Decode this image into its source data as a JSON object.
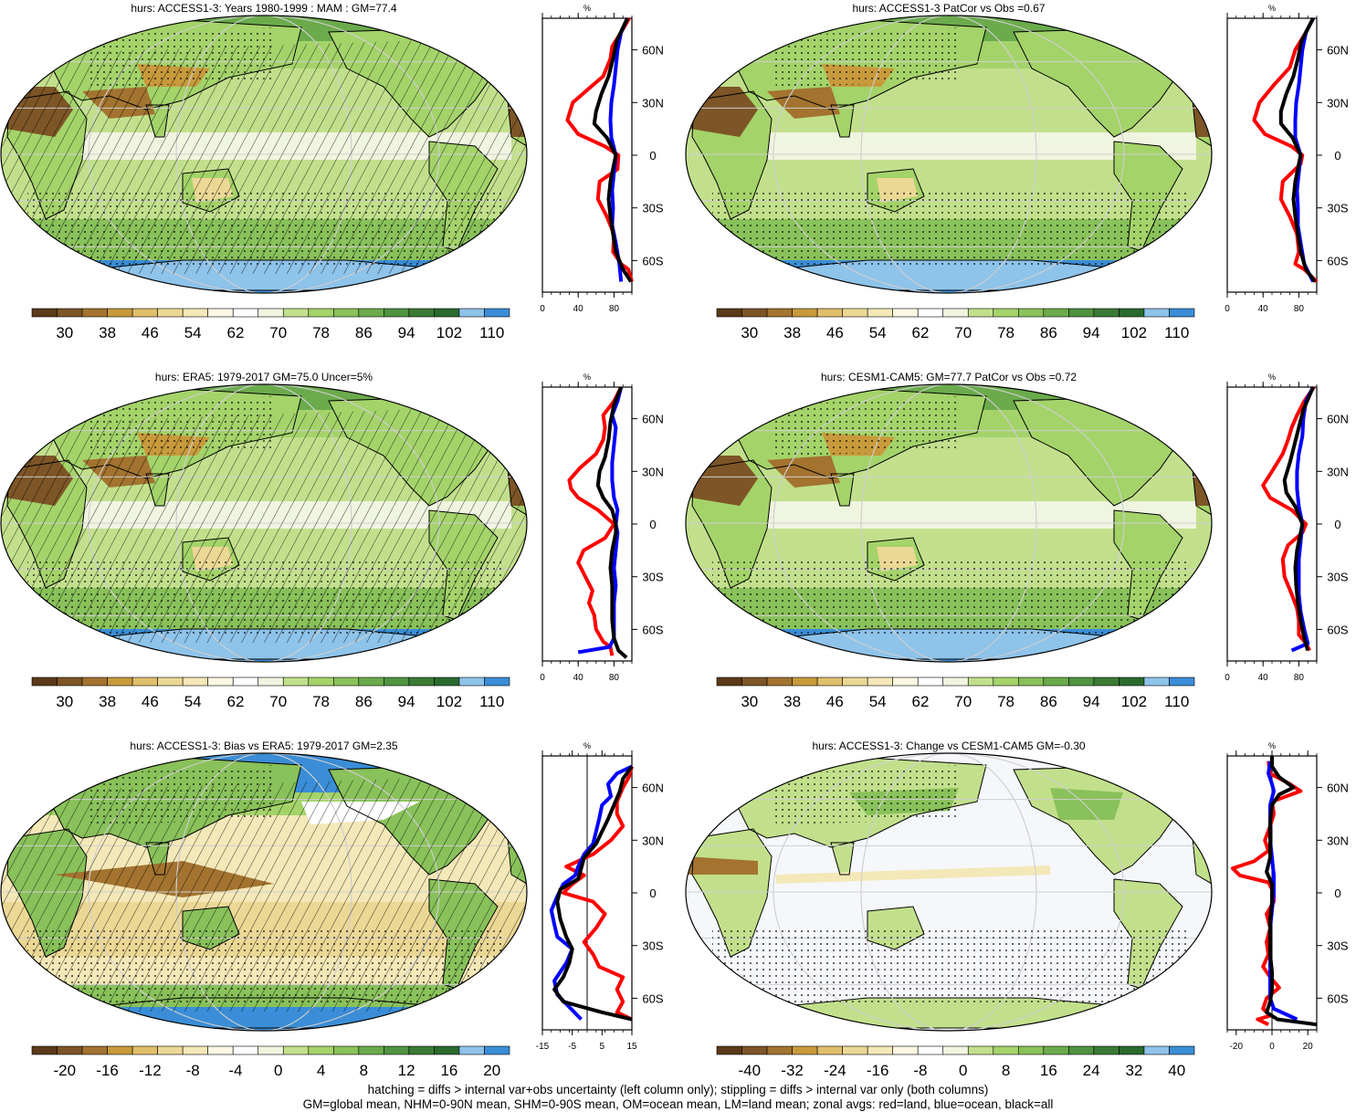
{
  "panels": [
    {
      "title": "hurs: ACCESS1-3: Years 1980-1999 : MAM : GM=77.4",
      "kind": "abs",
      "hatch": true,
      "stipple": true,
      "cb_labels": [
        "30",
        "38",
        "46",
        "54",
        "62",
        "70",
        "78",
        "86",
        "94",
        "102",
        "110"
      ],
      "zx_labels": [
        "0",
        "40",
        "80"
      ],
      "zx_range": [
        0,
        100
      ],
      "zx_ticks": [
        0,
        40,
        80
      ]
    },
    {
      "title": "hurs: ACCESS1-3 PatCor vs Obs =0.67",
      "kind": "abs",
      "hatch": false,
      "stipple": true,
      "cb_labels": [
        "30",
        "38",
        "46",
        "54",
        "62",
        "70",
        "78",
        "86",
        "94",
        "102",
        "110"
      ],
      "zx_labels": [
        "0",
        "40",
        "80"
      ],
      "zx_range": [
        0,
        100
      ],
      "zx_ticks": [
        0,
        40,
        80
      ]
    },
    {
      "title": "hurs: ERA5: 1979-2017 GM=75.0 Uncer=5%",
      "kind": "abs",
      "hatch": true,
      "stipple": true,
      "cb_labels": [
        "30",
        "38",
        "46",
        "54",
        "62",
        "70",
        "78",
        "86",
        "94",
        "102",
        "110"
      ],
      "zx_labels": [
        "0",
        "40",
        "80"
      ],
      "zx_range": [
        0,
        100
      ],
      "zx_ticks": [
        0,
        40,
        80
      ]
    },
    {
      "title": "hurs: CESM1-CAM5: GM=77.7 PatCor vs Obs =0.72",
      "kind": "abs",
      "hatch": false,
      "stipple": true,
      "cb_labels": [
        "30",
        "38",
        "46",
        "54",
        "62",
        "70",
        "78",
        "86",
        "94",
        "102",
        "110"
      ],
      "zx_labels": [
        "0",
        "40",
        "80"
      ],
      "zx_range": [
        0,
        100
      ],
      "zx_ticks": [
        0,
        40,
        80
      ]
    },
    {
      "title": "hurs: ACCESS1-3: Bias vs ERA5: 1979-2017 GM=2.35",
      "kind": "bias",
      "hatch": true,
      "stipple": true,
      "cb_labels": [
        "-20",
        "-16",
        "-12",
        "-8",
        "-4",
        "0",
        "4",
        "8",
        "12",
        "16",
        "20"
      ],
      "zx_labels": [
        "-15",
        "-5",
        "5",
        "15"
      ],
      "zx_range": [
        -15,
        15
      ],
      "zx_ticks": [
        -15,
        -5,
        5,
        15
      ]
    },
    {
      "title": "hurs: ACCESS1-3: Change vs CESM1-CAM5 GM=-0.30",
      "kind": "change",
      "hatch": false,
      "stipple": true,
      "cb_labels": [
        "-40",
        "-32",
        "-24",
        "-16",
        "-8",
        "0",
        "8",
        "16",
        "24",
        "32",
        "40"
      ],
      "zx_labels": [
        "-20",
        "0",
        "20"
      ],
      "zx_range": [
        -25,
        25
      ],
      "zx_ticks": [
        -20,
        0,
        20
      ]
    }
  ],
  "zonal_common": {
    "unit": "%",
    "lat_labels": [
      "60N",
      "30N",
      "0",
      "30S",
      "60S"
    ]
  },
  "palettes": {
    "abs": [
      "#5a3a1a",
      "#7d5526",
      "#a3732f",
      "#c89a3c",
      "#dfbf6a",
      "#ecd895",
      "#f4e8b8",
      "#fbf7e3",
      "#ffffff",
      "#f0f5e0",
      "#c2e08c",
      "#a4d36a",
      "#89c15a",
      "#6bab4c",
      "#4f9340",
      "#3b7a35",
      "#2a6a2e",
      "#8ec3ea",
      "#3a8dd6"
    ],
    "bias": [
      "#5a3a1a",
      "#7d5526",
      "#a3732f",
      "#c89a3c",
      "#dfbf6a",
      "#ecd895",
      "#f4e8b8",
      "#fbf7e3",
      "#ffffff",
      "#f0f5e0",
      "#c2e08c",
      "#a4d36a",
      "#89c15a",
      "#6bab4c",
      "#4f9340",
      "#3b7a35",
      "#2a6a2e",
      "#8ec3ea",
      "#3a8dd6"
    ],
    "change": [
      "#5a3a1a",
      "#7d5526",
      "#a3732f",
      "#c89a3c",
      "#dfbf6a",
      "#ecd895",
      "#f4e8b8",
      "#fbf7e3",
      "#ffffff",
      "#f0f5e0",
      "#c2e08c",
      "#a4d36a",
      "#89c15a",
      "#6bab4c",
      "#4f9340",
      "#3b7a35",
      "#2a6a2e",
      "#8ec3ea",
      "#3a8dd6"
    ]
  },
  "line_colors": {
    "land": "#ff0000",
    "ocean": "#0000ff",
    "all": "#000000"
  },
  "footnotes": {
    "line1": "hatching = diffs > internal var+obs uncertainty (left column only); stippling = diffs > internal var only (both columns)",
    "line2": "GM=global mean, NHM=0-90N mean, SHM=0-90S mean, OM=ocean mean, LM=land mean; zonal avgs: red=land, blue=ocean, black=all"
  }
}
